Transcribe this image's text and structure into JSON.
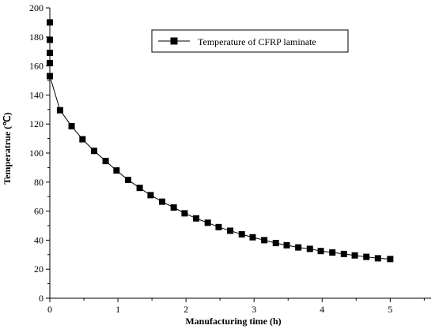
{
  "chart_data": {
    "type": "line",
    "title": "",
    "xlabel": "Manufacturing time (h)",
    "ylabel": "Temperatrue (℃)",
    "xlim": [
      0,
      5.6
    ],
    "ylim": [
      0,
      200
    ],
    "xticks": [
      0,
      1,
      2,
      3,
      4,
      5
    ],
    "yticks": [
      0,
      20,
      40,
      60,
      80,
      100,
      120,
      140,
      160,
      180,
      200
    ],
    "grid": false,
    "legend_position": "top-right",
    "series": [
      {
        "name": "Temperature of CFRP laminate",
        "color": "#000000",
        "marker": "square",
        "x": [
          0,
          0,
          0,
          0,
          0,
          0,
          0.15,
          0.32,
          0.48,
          0.65,
          0.82,
          0.98,
          1.15,
          1.32,
          1.48,
          1.65,
          1.82,
          1.98,
          2.15,
          2.32,
          2.48,
          2.65,
          2.82,
          2.98,
          3.15,
          3.32,
          3.48,
          3.65,
          3.82,
          3.98,
          4.15,
          4.32,
          4.48,
          4.65,
          4.82,
          5.0
        ],
        "y": [
          190,
          178,
          169,
          162,
          153,
          153,
          129.5,
          118.5,
          109.5,
          101.5,
          94.5,
          88,
          81.5,
          76,
          71,
          66.5,
          62.5,
          58.5,
          55,
          52,
          49,
          46.5,
          44,
          42,
          40,
          38,
          36.5,
          35,
          34,
          32.5,
          31.5,
          30.5,
          29.5,
          28.5,
          27.5,
          27
        ]
      }
    ]
  }
}
